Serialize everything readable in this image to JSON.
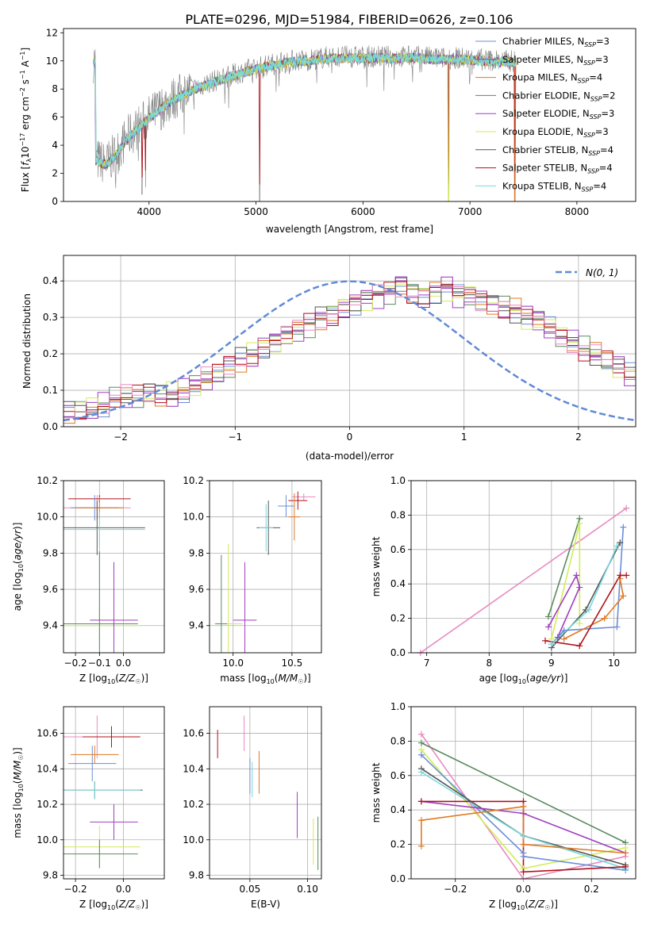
{
  "title": "PLATE=0296, MJD=51984, FIBERID=0626, z=0.106",
  "colors": {
    "chabrier_miles": "#6a8fd8",
    "salpeter_miles": "#9b2fb3",
    "kroupa_miles": "#e07a24",
    "chabrier_elodie": "#5a8a60",
    "salpeter_elodie": "#a03fc0",
    "kroupa_elodie": "#d2ec5a",
    "chabrier_stelib": "#555555",
    "salpeter_stelib": "#b0101a",
    "kroupa_stelib": "#78d8dc",
    "pink": "#e88ac0",
    "normal_curve": "#5f8ad6",
    "data_spectrum": "#7f7f7f"
  },
  "chart_data": [
    {
      "id": "spectrum",
      "type": "line",
      "xlabel": "wavelength [Angstrom, rest frame]",
      "ylabel": "Flux [f_λ10^-17 erg cm^-2 s^-1 A^-1]",
      "xlim": [
        3200,
        8550
      ],
      "ylim": [
        0,
        12.3
      ],
      "xticks": [
        4000,
        5000,
        6000,
        7000,
        8000
      ],
      "yticks": [
        0,
        2,
        4,
        6,
        8,
        10,
        12
      ],
      "legend_position": "right",
      "legend": [
        "Chabrier MILES, N_SSP=3",
        "Salpeter MILES, N_SSP=3",
        "Kroupa MILES, N_SSP=4",
        "Chabrier ELODIE, N_SSP=2",
        "Salpeter ELODIE, N_SSP=3",
        "Kroupa ELODIE, N_SSP=3",
        "Chabrier STELIB, N_SSP=4",
        "Salpeter STELIB, N_SSP=4",
        "Kroupa STELIB, N_SSP=4"
      ],
      "continuum": {
        "x": [
          3500,
          3600,
          3700,
          3800,
          3900,
          4000,
          4100,
          4200,
          4300,
          4400,
          4500,
          4700,
          4900,
          5100,
          5300,
          5500,
          5700,
          5900,
          6100,
          6300,
          6500,
          6700,
          6900,
          7100,
          7300,
          7400
        ],
        "y": [
          3.0,
          2.7,
          3.5,
          4.6,
          5.3,
          6.0,
          6.6,
          7.2,
          7.6,
          8.0,
          8.3,
          8.8,
          9.3,
          9.7,
          10.0,
          10.1,
          10.3,
          10.3,
          10.3,
          10.3,
          10.3,
          10.2,
          10.2,
          10.1,
          10.0,
          10.0
        ]
      },
      "dips": [
        {
          "x": 3934,
          "y": 0.5
        },
        {
          "x": 3968,
          "y": 1.0
        },
        {
          "x": 5035,
          "y": 0
        },
        {
          "x": 6800,
          "y": 0
        },
        {
          "x": 7420,
          "y": 0
        }
      ]
    },
    {
      "id": "residuals",
      "type": "bar",
      "xlabel": "(data-model)/error",
      "ylabel": "Normed distribution",
      "xlim": [
        -2.5,
        2.5
      ],
      "ylim": [
        0,
        0.47
      ],
      "xticks": [
        -2,
        -1,
        0,
        1,
        2
      ],
      "yticks": [
        0.0,
        0.1,
        0.2,
        0.3,
        0.4
      ],
      "grid": true,
      "legend_position": "top-right",
      "legend": [
        "N(0,1)"
      ],
      "bin_width": 0.1,
      "bin_start": -2.5,
      "histogram": [
        0.035,
        0.04,
        0.05,
        0.06,
        0.075,
        0.08,
        0.08,
        0.09,
        0.085,
        0.09,
        0.1,
        0.115,
        0.13,
        0.145,
        0.165,
        0.185,
        0.2,
        0.22,
        0.235,
        0.25,
        0.265,
        0.28,
        0.3,
        0.31,
        0.33,
        0.34,
        0.35,
        0.36,
        0.37,
        0.39,
        0.37,
        0.36,
        0.37,
        0.38,
        0.36,
        0.36,
        0.35,
        0.34,
        0.33,
        0.32,
        0.3,
        0.29,
        0.27,
        0.25,
        0.235,
        0.215,
        0.2,
        0.18,
        0.16,
        0.14,
        0.125,
        0.11,
        0.1,
        0.085,
        0.075,
        0.07,
        0.06,
        0.05,
        0.045,
        0.04
      ]
    },
    {
      "id": "age_vs_Z",
      "type": "scatter",
      "xlabel": "Z [log10(Z/Z☉)]",
      "ylabel": "age  [log10(age/yr)]",
      "xlim": [
        -0.25,
        0.17
      ],
      "ylim": [
        9.25,
        10.2
      ],
      "xticks": [
        -0.2,
        -0.1,
        0.0
      ],
      "yticks": [
        9.4,
        9.6,
        9.8,
        10.0,
        10.2
      ],
      "grid": true,
      "points": [
        {
          "x": -0.11,
          "y": 10.05,
          "xerr": 0.14,
          "yerr": 0.07,
          "c": "pink"
        },
        {
          "x": -0.1,
          "y": 10.1,
          "xerr": 0.13,
          "yerr": 0.02,
          "c": "salpeter_stelib"
        },
        {
          "x": -0.12,
          "y": 10.05,
          "xerr": 0.1,
          "yerr": 0.07,
          "c": "chabrier_miles"
        },
        {
          "x": -0.1,
          "y": 10.05,
          "xerr": 0.1,
          "yerr": 0.06,
          "c": "kroupa_miles"
        },
        {
          "x": -0.11,
          "y": 9.94,
          "xerr": 0.2,
          "yerr": 0.15,
          "c": "chabrier_stelib"
        },
        {
          "x": -0.1,
          "y": 9.93,
          "xerr": 0.19,
          "yerr": 0.1,
          "c": "kroupa_stelib"
        },
        {
          "x": -0.1,
          "y": 9.4,
          "xerr": 0.17,
          "yerr": 0.1,
          "c": "kroupa_elodie"
        },
        {
          "x": -0.1,
          "y": 9.41,
          "xerr": 0.16,
          "yerr": 0.4,
          "c": "chabrier_elodie"
        },
        {
          "x": -0.04,
          "y": 9.43,
          "xerr": 0.1,
          "yerr": 0.32,
          "c": "salpeter_elodie"
        }
      ]
    },
    {
      "id": "age_vs_mass",
      "type": "scatter",
      "xlabel": "mass [log10(M/M☉)]",
      "ylabel": "",
      "xlim": [
        9.8,
        10.75
      ],
      "ylim": [
        9.25,
        10.2
      ],
      "xticks": [
        10.0,
        10.5
      ],
      "yticks": [
        9.4,
        9.6,
        9.8,
        10.0,
        10.2
      ],
      "grid": true,
      "points": [
        {
          "x": 10.6,
          "y": 10.11,
          "xerr": 0.1,
          "yerr": 0.02,
          "c": "pink"
        },
        {
          "x": 10.55,
          "y": 10.09,
          "xerr": 0.08,
          "yerr": 0.05,
          "c": "salpeter_stelib"
        },
        {
          "x": 10.45,
          "y": 10.06,
          "xerr": 0.07,
          "yerr": 0.06,
          "c": "chabrier_miles"
        },
        {
          "x": 10.52,
          "y": 10.0,
          "xerr": 0.05,
          "yerr": 0.13,
          "c": "kroupa_miles"
        },
        {
          "x": 10.3,
          "y": 9.94,
          "xerr": 0.1,
          "yerr": 0.15,
          "c": "chabrier_stelib"
        },
        {
          "x": 10.28,
          "y": 9.94,
          "xerr": 0.06,
          "yerr": 0.13,
          "c": "kroupa_stelib"
        },
        {
          "x": 9.96,
          "y": 9.41,
          "xerr": 0.12,
          "yerr": 0.44,
          "c": "kroupa_elodie"
        },
        {
          "x": 9.9,
          "y": 9.41,
          "xerr": 0.05,
          "yerr": 0.38,
          "c": "chabrier_elodie"
        },
        {
          "x": 10.1,
          "y": 9.43,
          "xerr": 0.1,
          "yerr": 0.32,
          "c": "salpeter_elodie"
        }
      ]
    },
    {
      "id": "weight_vs_age",
      "type": "line",
      "xlabel": "age  [log10(age/yr)]",
      "ylabel": "mass weight",
      "xlim": [
        6.75,
        10.35
      ],
      "ylim": [
        0,
        1.0
      ],
      "xticks": [
        7,
        8,
        9,
        10
      ],
      "yticks": [
        0.0,
        0.2,
        0.4,
        0.6,
        0.8,
        1.0
      ],
      "grid": true,
      "series": [
        {
          "c": "pink",
          "x": [
            6.9,
            10.2
          ],
          "y": [
            0.0,
            0.84
          ]
        },
        {
          "c": "chabrier_elodie",
          "x": [
            8.95,
            9.45
          ],
          "y": [
            0.21,
            0.78
          ]
        },
        {
          "c": "kroupa_elodie",
          "x": [
            9.0,
            9.45,
            9.45
          ],
          "y": [
            0.08,
            0.75,
            0.17
          ]
        },
        {
          "c": "salpeter_elodie",
          "x": [
            8.95,
            9.4,
            9.45,
            9.1
          ],
          "y": [
            0.15,
            0.45,
            0.38,
            0.09
          ]
        },
        {
          "c": "chabrier_miles",
          "x": [
            9.0,
            9.2,
            10.05,
            10.15
          ],
          "y": [
            0.05,
            0.13,
            0.15,
            0.73
          ]
        },
        {
          "c": "kroupa_miles",
          "x": [
            9.2,
            9.85,
            10.15,
            10.1
          ],
          "y": [
            0.08,
            0.2,
            0.33,
            0.43
          ]
        },
        {
          "c": "salpeter_stelib",
          "x": [
            8.9,
            9.45,
            10.1,
            10.2
          ],
          "y": [
            0.07,
            0.04,
            0.45,
            0.45
          ]
        },
        {
          "c": "chabrier_stelib",
          "x": [
            9.0,
            9.55,
            10.1
          ],
          "y": [
            0.03,
            0.25,
            0.64
          ]
        },
        {
          "c": "kroupa_stelib",
          "x": [
            9.0,
            9.6,
            10.05
          ],
          "y": [
            0.05,
            0.25,
            0.62
          ]
        }
      ]
    },
    {
      "id": "mass_vs_Z",
      "type": "scatter",
      "xlabel": "Z [log10(Z/Z☉)]",
      "ylabel": "mass [log10(M/M☉)]",
      "xlim": [
        -0.25,
        0.17
      ],
      "ylim": [
        9.78,
        10.75
      ],
      "xticks": [
        -0.2,
        0.0
      ],
      "yticks": [
        9.8,
        10.0,
        10.2,
        10.4,
        10.6
      ],
      "grid": true,
      "points": [
        {
          "x": -0.11,
          "y": 10.58,
          "xerr": 0.14,
          "yerr": 0.12,
          "c": "pink"
        },
        {
          "x": -0.05,
          "y": 10.58,
          "xerr": 0.12,
          "yerr": 0.06,
          "c": "salpeter_stelib"
        },
        {
          "x": -0.13,
          "y": 10.43,
          "xerr": 0.1,
          "yerr": 0.1,
          "c": "chabrier_miles"
        },
        {
          "x": -0.12,
          "y": 10.48,
          "xerr": 0.1,
          "yerr": 0.05,
          "c": "kroupa_miles"
        },
        {
          "x": -0.12,
          "y": 10.28,
          "xerr": 0.2,
          "yerr": 0.05,
          "c": "chabrier_stelib"
        },
        {
          "x": -0.12,
          "y": 10.28,
          "xerr": 0.19,
          "yerr": 0.05,
          "c": "kroupa_stelib"
        },
        {
          "x": -0.1,
          "y": 9.96,
          "xerr": 0.17,
          "yerr": 0.12,
          "c": "kroupa_elodie"
        },
        {
          "x": -0.1,
          "y": 9.92,
          "xerr": 0.16,
          "yerr": 0.08,
          "c": "chabrier_elodie"
        },
        {
          "x": -0.04,
          "y": 10.1,
          "xerr": 0.1,
          "yerr": 0.1,
          "c": "salpeter_elodie"
        }
      ]
    },
    {
      "id": "mass_vs_ebv",
      "type": "scatter",
      "xlabel": "E(B-V)",
      "ylabel": "",
      "xlim": [
        0.015,
        0.112
      ],
      "ylim": [
        9.78,
        10.75
      ],
      "xticks": [
        0.05,
        0.1
      ],
      "yticks": [
        9.8,
        10.0,
        10.2,
        10.4,
        10.6
      ],
      "grid": true,
      "points": [
        {
          "x": 0.022,
          "y": 10.54,
          "xerr": 0,
          "yerr": 0.08,
          "c": "salpeter_stelib"
        },
        {
          "x": 0.045,
          "y": 10.6,
          "xerr": 0,
          "yerr": 0.1,
          "c": "pink"
        },
        {
          "x": 0.05,
          "y": 10.36,
          "xerr": 0,
          "yerr": 0.1,
          "c": "chabrier_miles"
        },
        {
          "x": 0.052,
          "y": 10.34,
          "xerr": 0,
          "yerr": 0.1,
          "c": "kroupa_stelib"
        },
        {
          "x": 0.058,
          "y": 10.38,
          "xerr": 0,
          "yerr": 0.12,
          "c": "kroupa_miles"
        },
        {
          "x": 0.091,
          "y": 10.14,
          "xerr": 0,
          "yerr": 0.13,
          "c": "salpeter_elodie"
        },
        {
          "x": 0.105,
          "y": 9.99,
          "xerr": 0,
          "yerr": 0.13,
          "c": "kroupa_elodie"
        },
        {
          "x": 0.109,
          "y": 9.98,
          "xerr": 0,
          "yerr": 0.15,
          "c": "chabrier_elodie"
        }
      ]
    },
    {
      "id": "weight_vs_Z",
      "type": "line",
      "xlabel": "Z [log10(Z/Z☉)]",
      "ylabel": "mass weight",
      "xlim": [
        -0.33,
        0.33
      ],
      "ylim": [
        0,
        1.0
      ],
      "xticks": [
        -0.2,
        0.0,
        0.2
      ],
      "yticks": [
        0.0,
        0.2,
        0.4,
        0.6,
        0.8,
        1.0
      ],
      "grid": true,
      "series": [
        {
          "c": "pink",
          "x": [
            -0.3,
            0.0,
            0.3
          ],
          "y": [
            0.84,
            0.0,
            0.13
          ]
        },
        {
          "c": "chabrier_elodie",
          "x": [
            -0.3,
            0.3
          ],
          "y": [
            0.79,
            0.21
          ]
        },
        {
          "c": "kroupa_elodie",
          "x": [
            -0.3,
            0.0,
            0.3
          ],
          "y": [
            0.75,
            0.06,
            0.18
          ]
        },
        {
          "c": "chabrier_miles",
          "x": [
            -0.3,
            0.0,
            0.0,
            0.3
          ],
          "y": [
            0.72,
            0.15,
            0.13,
            0.05
          ]
        },
        {
          "c": "chabrier_stelib",
          "x": [
            -0.3,
            0.0,
            0.3
          ],
          "y": [
            0.64,
            0.25,
            0.08
          ]
        },
        {
          "c": "kroupa_stelib",
          "x": [
            -0.3,
            0.0,
            0.3
          ],
          "y": [
            0.62,
            0.25,
            0.06
          ]
        },
        {
          "c": "salpeter_elodie",
          "x": [
            -0.3,
            0.0,
            0.3
          ],
          "y": [
            0.45,
            0.38,
            0.15
          ]
        },
        {
          "c": "salpeter_stelib",
          "x": [
            -0.3,
            0.0,
            0.0,
            0.3
          ],
          "y": [
            0.45,
            0.45,
            0.04,
            0.07
          ]
        },
        {
          "c": "kroupa_miles",
          "x": [
            -0.3,
            -0.3,
            0.0,
            0.0,
            0.3
          ],
          "y": [
            0.19,
            0.34,
            0.42,
            0.2,
            0.15
          ]
        }
      ]
    }
  ]
}
